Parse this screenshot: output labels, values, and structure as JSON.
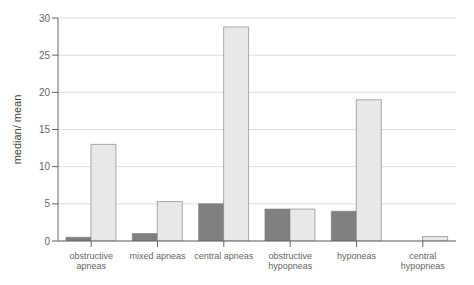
{
  "chart_data": {
    "type": "bar",
    "categories": [
      "obstructive\napneas",
      "mixed apneas",
      "central apneas",
      "obstructive\nhypopneas",
      "hyponeas",
      "central\nhypopneas"
    ],
    "series": [
      {
        "color": "#808080",
        "values": [
          0.5,
          1.0,
          5.0,
          4.3,
          4.0,
          0.0
        ]
      },
      {
        "color": "#e8e8e8",
        "values": [
          13.0,
          5.3,
          28.8,
          4.3,
          19.0,
          0.6
        ]
      }
    ],
    "ylabel": "median/ mean",
    "ylim": [
      0,
      30
    ],
    "yticks": [
      0,
      5,
      10,
      15,
      20,
      25,
      30
    ],
    "grid": true
  }
}
